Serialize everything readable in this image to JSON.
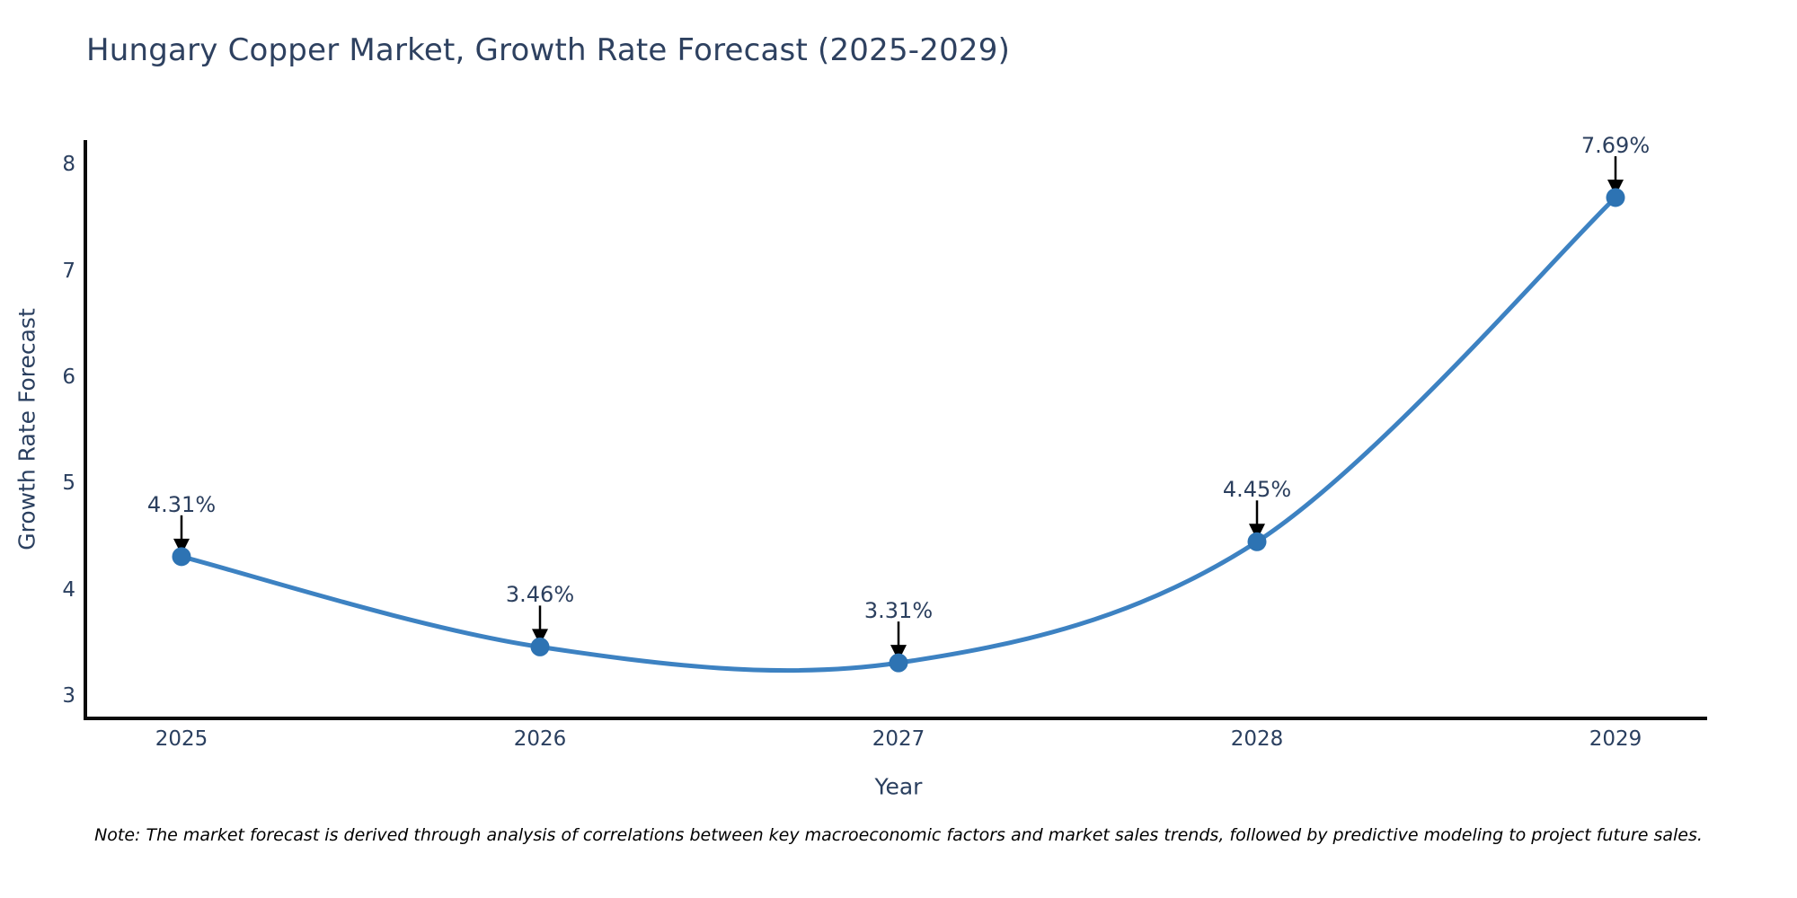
{
  "title": "Hungary Copper Market, Growth Rate Forecast (2025-2029)",
  "note": "Note: The market forecast is derived through analysis of correlations between key macroeconomic factors and market sales trends, followed by predictive modeling to project future sales.",
  "chart_data": {
    "type": "line",
    "title": "Hungary Copper Market, Growth Rate Forecast (2025-2029)",
    "xlabel": "Year",
    "ylabel": "Growth Rate Forecast",
    "x": [
      2025,
      2026,
      2027,
      2028,
      2029
    ],
    "x_tick_labels": [
      "2025",
      "2026",
      "2027",
      "2028",
      "2029"
    ],
    "series": [
      {
        "name": "Growth Rate Forecast",
        "values": [
          4.31,
          3.46,
          3.31,
          4.45,
          7.69
        ]
      }
    ],
    "point_labels": [
      "4.31%",
      "3.46%",
      "3.31%",
      "4.45%",
      "7.69%"
    ],
    "y_ticks": [
      3,
      4,
      5,
      6,
      7,
      8
    ],
    "ylim": [
      3,
      8
    ],
    "grid": false,
    "legend": "none",
    "line_shape": "spline",
    "markers": true,
    "annotation_arrows": true
  },
  "colors": {
    "background": "#ffffff",
    "line": "#3d82c2",
    "marker": "#2d73b3",
    "axis_line": "#0a0a0a",
    "title_text": "#2e4160",
    "tick_text": "#2a3f5f",
    "annotation_text": "#2b3f5e",
    "arrow": "#000000",
    "note_text": "#000000"
  }
}
